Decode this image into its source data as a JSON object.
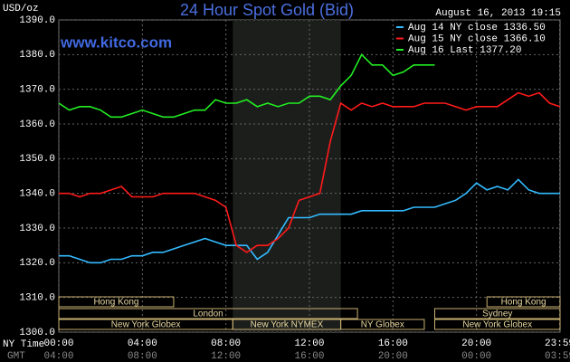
{
  "chart_data": {
    "type": "line",
    "title": "24 Hour Spot Gold (Bid)",
    "subtitle": "www.kitco.com",
    "timestamp": "August 16, 2013 19:15",
    "y_label": "USD/oz",
    "x_label": "NY Time",
    "x2_label": "GMT",
    "x": [
      0,
      0.5,
      1,
      1.5,
      2,
      2.5,
      3,
      3.5,
      4,
      4.5,
      5,
      5.5,
      6,
      6.5,
      7,
      7.5,
      8,
      8.5,
      9,
      9.5,
      10,
      10.5,
      11,
      11.5,
      12,
      12.5,
      13,
      13.5,
      14,
      14.5,
      15,
      15.5,
      16,
      16.5,
      17,
      17.5,
      18,
      18.5,
      19,
      19.5,
      20,
      20.5,
      21,
      21.5,
      22,
      22.5,
      23,
      23.5,
      24
    ],
    "series": [
      {
        "name": "Aug 14 NY close 1336.50",
        "color": "#33bbff",
        "values": [
          1322,
          1322,
          1321,
          1320,
          1320,
          1321,
          1321,
          1322,
          1322,
          1323,
          1323,
          1324,
          1325,
          1326,
          1327,
          1326,
          1325,
          1325,
          1325,
          1321,
          1323,
          1328,
          1333,
          1333,
          1333,
          1334,
          1334,
          1334,
          1334,
          1335,
          1335,
          1335,
          1335,
          1335,
          1336,
          1336,
          1336,
          1337,
          1338,
          1340,
          1343,
          1341,
          1342,
          1341,
          1344,
          1341,
          1340,
          1340,
          1340
        ]
      },
      {
        "name": "Aug 15 NY close 1366.10",
        "color": "#ff1a1a",
        "values": [
          1340,
          1340,
          1339,
          1340,
          1340,
          1341,
          1342,
          1339,
          1339,
          1339,
          1340,
          1340,
          1340,
          1340,
          1339,
          1338,
          1336,
          1325,
          1323,
          1325,
          1325,
          1327,
          1330,
          1338,
          1339,
          1340,
          1355,
          1366,
          1364,
          1366,
          1365,
          1366,
          1365,
          1365,
          1365,
          1366,
          1366,
          1366,
          1365,
          1364,
          1365,
          1365,
          1365,
          1367,
          1369,
          1368,
          1369,
          1366,
          1365
        ]
      },
      {
        "name": "Aug 16 Last 1377.20",
        "color": "#22ee22",
        "values": [
          1366,
          1364,
          1365,
          1365,
          1364,
          1362,
          1362,
          1363,
          1364,
          1363,
          1362,
          1362,
          1363,
          1364,
          1364,
          1367,
          1366,
          1366,
          1367,
          1365,
          1366,
          1365,
          1366,
          1366,
          1368,
          1368,
          1367,
          1371,
          1374,
          1380,
          1377,
          1377,
          1374,
          1375,
          1377,
          1377,
          1377,
          null,
          null,
          null,
          null,
          null,
          null,
          null,
          null,
          null,
          null,
          null,
          null
        ]
      }
    ],
    "xlim": [
      0,
      24
    ],
    "xticks": [
      {
        "value": 0,
        "label": "00:00"
      },
      {
        "value": 4,
        "label": "04:00"
      },
      {
        "value": 8,
        "label": "08:00"
      },
      {
        "value": 12,
        "label": "12:00"
      },
      {
        "value": 16,
        "label": "16:00"
      },
      {
        "value": 20,
        "label": "20:00"
      },
      {
        "value": 23.98,
        "label": "23:59"
      }
    ],
    "x2_tick_labels": [
      "04:00",
      "08:00",
      "12:00",
      "16:00",
      "20:00",
      "00:00",
      "03:59"
    ],
    "ylim": [
      1300,
      1390
    ],
    "yticks": [
      {
        "value": 1300,
        "label": "1300.0"
      },
      {
        "value": 1310,
        "label": "1310.0"
      },
      {
        "value": 1320,
        "label": "1320.0"
      },
      {
        "value": 1330,
        "label": "1330.0"
      },
      {
        "value": 1340,
        "label": "1340.0"
      },
      {
        "value": 1350,
        "label": "1350.0"
      },
      {
        "value": 1360,
        "label": "1360.0"
      },
      {
        "value": 1370,
        "label": "1370.0"
      },
      {
        "value": 1380,
        "label": "1380.0"
      },
      {
        "value": 1390,
        "label": "1390.0"
      }
    ],
    "grid": true,
    "shaded_range": [
      8.33,
      13.5
    ],
    "sessions": [
      [
        {
          "label": "Hong Kong",
          "start": 0,
          "end": 5.5
        },
        {
          "label": "Hong Kong",
          "start": 20.5,
          "end": 24
        }
      ],
      [
        {
          "label": "London",
          "start": 0,
          "end": 14.3
        },
        {
          "label": "Sydney",
          "start": 18,
          "end": 24
        }
      ],
      [
        {
          "label": "New York Globex",
          "start": 0,
          "end": 8.33
        },
        {
          "label": "New York NYMEX",
          "start": 8.33,
          "end": 13.5
        },
        {
          "label": "NY Globex",
          "start": 13.5,
          "end": 17.5
        },
        {
          "label": "New York Globex",
          "start": 18,
          "end": 24
        }
      ]
    ]
  }
}
